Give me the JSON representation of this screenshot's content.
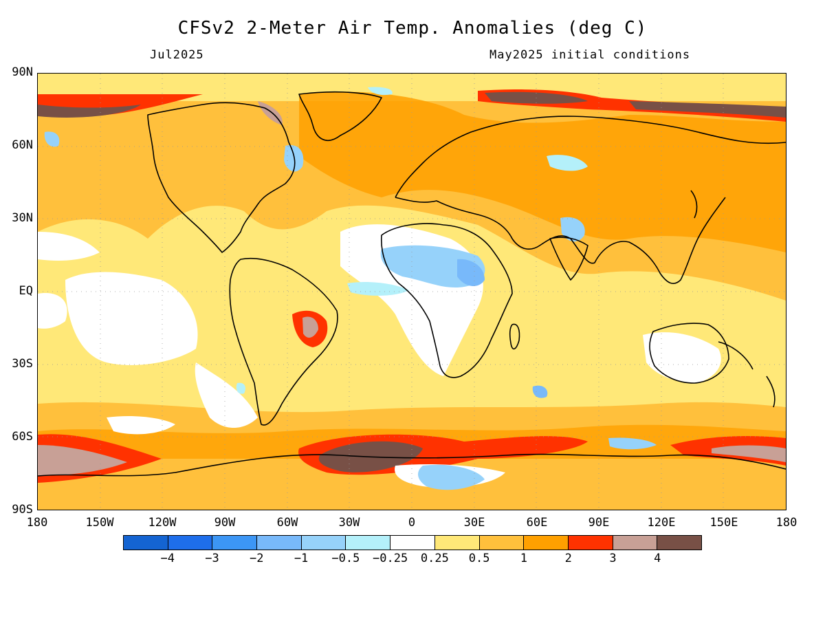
{
  "title": "CFSv2 2-Meter Air Temp. Anomalies (deg C)",
  "valid_month": "Jul2025",
  "init_label": "May2025 initial conditions",
  "lat_labels": [
    "90N",
    "60N",
    "30N",
    "EQ",
    "30S",
    "60S",
    "90S"
  ],
  "lon_labels": [
    "180",
    "150W",
    "120W",
    "90W",
    "60W",
    "30W",
    "0",
    "30E",
    "60E",
    "90E",
    "120E",
    "150E",
    "180"
  ],
  "colorbar": {
    "colors": [
      "#1464d2",
      "#1e6eeb",
      "#3c96f5",
      "#78b9fa",
      "#96d2fa",
      "#b4f0fa",
      "#ffffff",
      "#ffe878",
      "#ffc03c",
      "#ffa000",
      "#ff3200",
      "#c8a096",
      "#785046"
    ],
    "labels": [
      "-4",
      "-3",
      "-2",
      "-1",
      "-0.5",
      "-0.25",
      "0.25",
      "0.5",
      "1",
      "2",
      "3",
      "4"
    ]
  }
}
